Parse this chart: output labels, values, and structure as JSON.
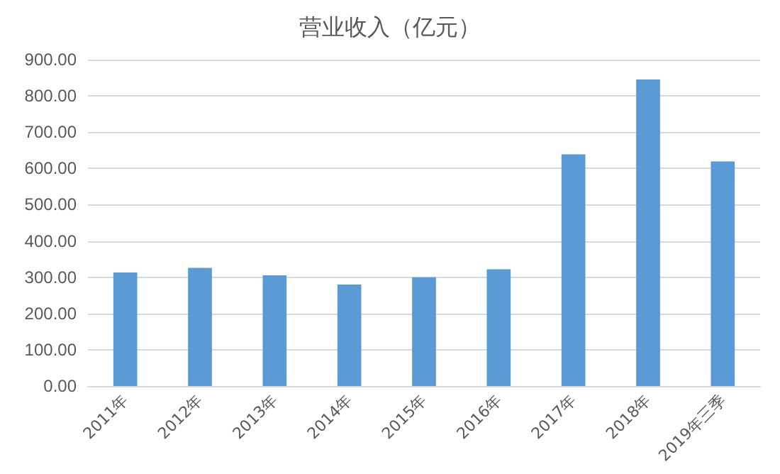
{
  "chart_data": {
    "type": "bar",
    "title": "营业收入（亿元）",
    "categories": [
      "2011年",
      "2012年",
      "2013年",
      "2014年",
      "2015年",
      "2016年",
      "2017年",
      "2018年",
      "2019年三季"
    ],
    "values": [
      313,
      326,
      305,
      280,
      300,
      322,
      639,
      845,
      619
    ],
    "color": "#5b9bd5",
    "ylim": [
      0,
      900
    ],
    "yticks": [
      {
        "value": 0,
        "label": "0.00"
      },
      {
        "value": 100,
        "label": "100.00"
      },
      {
        "value": 200,
        "label": "200.00"
      },
      {
        "value": 300,
        "label": "300.00"
      },
      {
        "value": 400,
        "label": "400.00"
      },
      {
        "value": 500,
        "label": "500.00"
      },
      {
        "value": 600,
        "label": "600.00"
      },
      {
        "value": 700,
        "label": "700.00"
      },
      {
        "value": 800,
        "label": "800.00"
      },
      {
        "value": 900,
        "label": "900.00"
      }
    ],
    "grid": "y"
  }
}
